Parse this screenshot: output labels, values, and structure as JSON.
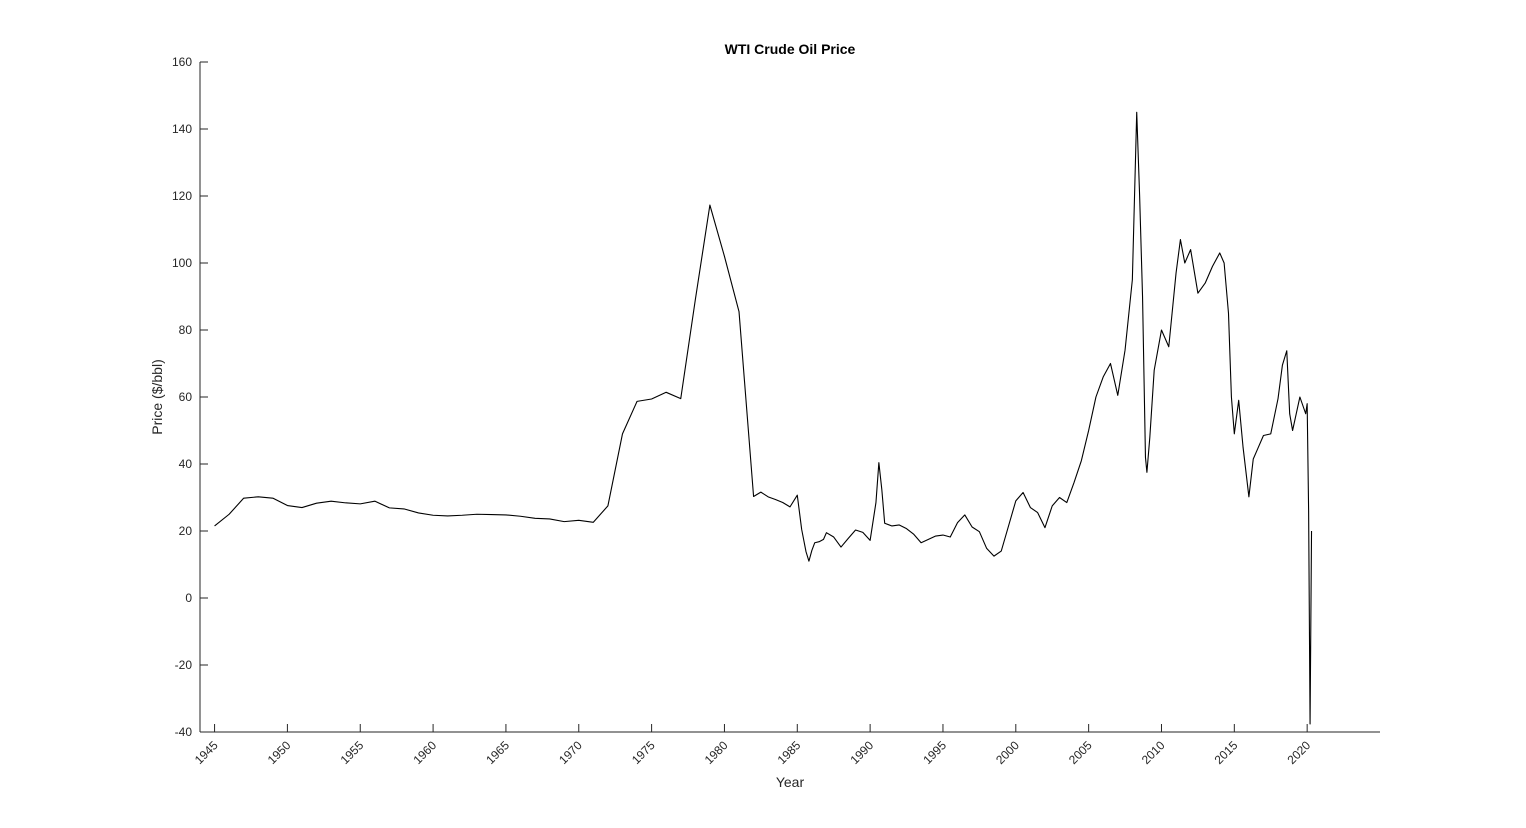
{
  "chart_data": {
    "type": "line",
    "title": "WTI Crude Oil Price",
    "xlabel": "Year",
    "ylabel": "Price ($/bbl)",
    "xlim": [
      1944,
      2025
    ],
    "ylim": [
      -40,
      160
    ],
    "grid": false,
    "legend": "none",
    "line_color": "#000000",
    "x_ticks": [
      1945,
      1950,
      1955,
      1960,
      1965,
      1970,
      1975,
      1980,
      1985,
      1990,
      1995,
      2000,
      2005,
      2010,
      2015,
      2020
    ],
    "x_tick_labels": [
      "1945",
      "1950",
      "1955",
      "1960",
      "1965",
      "1970",
      "1975",
      "1980",
      "1985",
      "1990",
      "1995",
      "2000",
      "2005",
      "2010",
      "2015",
      "2020"
    ],
    "y_ticks": [
      -40,
      -20,
      0,
      20,
      40,
      60,
      80,
      100,
      120,
      140,
      160
    ],
    "y_tick_labels": [
      "-40",
      "-20",
      "0",
      "20",
      "40",
      "60",
      "80",
      "100",
      "120",
      "140",
      "160"
    ],
    "series": [
      {
        "x": [
          1945,
          1946,
          1947,
          1948,
          1949,
          1950,
          1951,
          1952,
          1953,
          1954,
          1955,
          1956,
          1957,
          1958,
          1959,
          1960,
          1961,
          1962,
          1963,
          1964,
          1965,
          1966,
          1967,
          1968,
          1969,
          1970,
          1971,
          1972,
          1973,
          1974,
          1975,
          1976,
          1977,
          1978,
          1979,
          1980,
          1981,
          1982,
          1982.5,
          1983,
          1983.5,
          1984,
          1984.5,
          1985,
          1985.3,
          1985.6,
          1985.8,
          1986,
          1986.2,
          1986.5,
          1986.8,
          1987,
          1987.5,
          1988,
          1988.5,
          1989,
          1989.5,
          1990,
          1990.4,
          1990.6,
          1990.8,
          1991,
          1991.5,
          1992,
          1992.5,
          1993,
          1993.5,
          1994,
          1994.5,
          1995,
          1995.5,
          1996,
          1996.5,
          1997,
          1997.5,
          1998,
          1998.5,
          1999,
          1999.5,
          2000,
          2000.5,
          2001,
          2001.5,
          2002,
          2002.5,
          2003,
          2003.5,
          2004,
          2004.5,
          2005,
          2005.5,
          2006,
          2006.5,
          2007,
          2007.5,
          2008,
          2008.3,
          2008.5,
          2008.7,
          2008.9,
          2009,
          2009.2,
          2009.5,
          2010,
          2010.5,
          2011,
          2011.3,
          2011.6,
          2012,
          2012.5,
          2013,
          2013.5,
          2014,
          2014.3,
          2014.6,
          2014.8,
          2015,
          2015.3,
          2015.6,
          2016,
          2016.3,
          2016.6,
          2017,
          2017.5,
          2018,
          2018.3,
          2018.6,
          2018.8,
          2019,
          2019.5,
          2019.9,
          2020,
          2020.1,
          2020.2,
          2020.3
        ],
        "y": [
          21.5,
          25,
          29.8,
          30.2,
          29.8,
          27.6,
          27,
          28.3,
          28.9,
          28.4,
          28.1,
          28.9,
          26.9,
          26.6,
          25.4,
          24.7,
          24.5,
          24.7,
          25,
          24.9,
          24.8,
          24.4,
          23.8,
          23.6,
          22.8,
          23.2,
          22.6,
          27.5,
          49,
          58.7,
          59.4,
          61.4,
          59.5,
          89,
          117.3,
          102,
          85.5,
          30.3,
          31.6,
          30.2,
          29.4,
          28.5,
          27.2,
          30.7,
          20.5,
          13.8,
          11,
          14.2,
          16.5,
          16.8,
          17.5,
          19.5,
          18.2,
          15.2,
          17.8,
          20.3,
          19.6,
          17.2,
          28.5,
          40.4,
          32.5,
          22.3,
          21.5,
          21.8,
          20.7,
          19,
          16.5,
          17.5,
          18.5,
          18.8,
          18.2,
          22.5,
          24.8,
          21.2,
          19.8,
          14.8,
          12.5,
          14,
          21.5,
          29,
          31.5,
          27,
          25.5,
          21,
          27.5,
          30,
          28.5,
          34.5,
          41,
          50,
          60,
          66,
          70,
          60.5,
          74,
          95,
          145,
          120,
          90,
          42,
          37.5,
          48,
          68,
          80,
          75,
          97,
          107,
          100,
          104,
          91,
          94,
          99,
          103,
          100,
          85,
          60,
          49,
          59,
          45,
          30.2,
          41.5,
          44.5,
          48.5,
          49,
          59.5,
          69.5,
          73.8,
          55,
          50,
          60,
          55,
          58,
          26,
          -37.6,
          20
        ]
      }
    ]
  }
}
